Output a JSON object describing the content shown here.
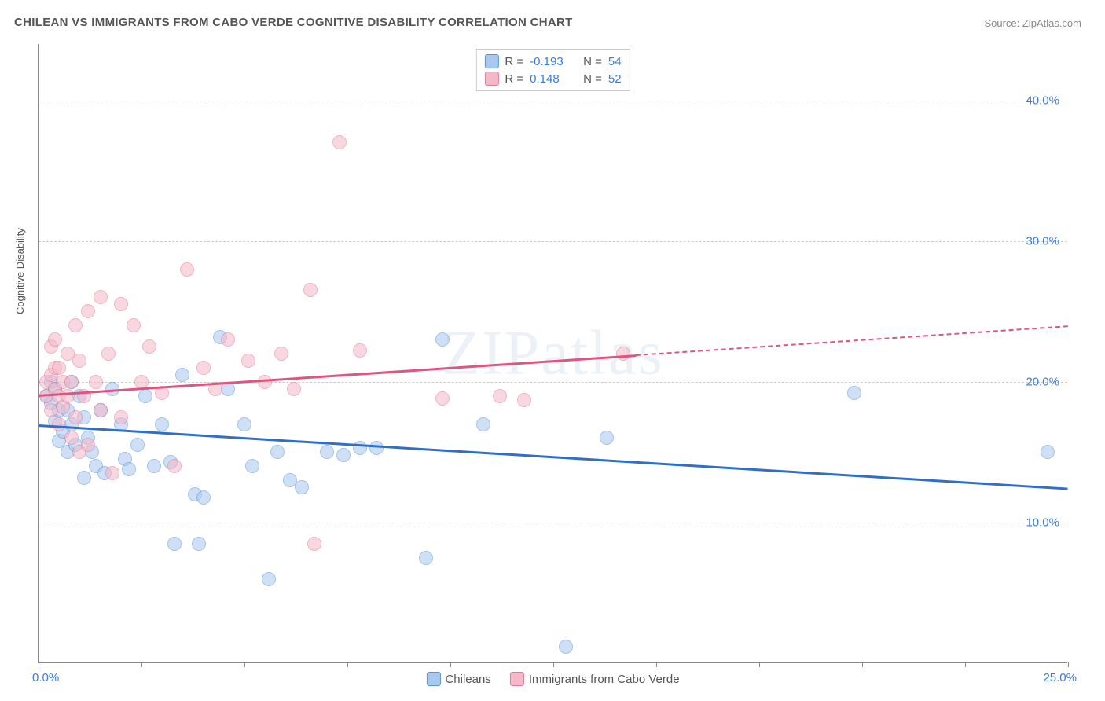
{
  "title": "CHILEAN VS IMMIGRANTS FROM CABO VERDE COGNITIVE DISABILITY CORRELATION CHART",
  "source_prefix": "Source: ",
  "source_name": "ZipAtlas.com",
  "watermark": "ZIPatlas",
  "y_axis_title": "Cognitive Disability",
  "chart": {
    "type": "scatter",
    "xlim": [
      0,
      25
    ],
    "ylim": [
      0,
      44
    ],
    "x_ticks": [
      0,
      2.5,
      5,
      7.5,
      10,
      12.5,
      15,
      17.5,
      20,
      22.5,
      25
    ],
    "x_origin_label": "0.0%",
    "x_max_label": "25.0%",
    "y_gridlines": [
      10,
      20,
      30,
      40
    ],
    "y_tick_labels": [
      "10.0%",
      "20.0%",
      "30.0%",
      "40.0%"
    ],
    "y_tick_color": "#3b7dd8",
    "x_label_color": "#3b7dd8",
    "background": "#ffffff",
    "grid_color": "#cccccc",
    "axis_color": "#888888",
    "marker_radius": 9,
    "marker_opacity": 0.55,
    "marker_border_opacity": 0.9
  },
  "series": [
    {
      "key": "chileans",
      "label": "Chileans",
      "fill": "#a8c8f0",
      "stroke": "#5a93d6",
      "line_color": "#2f6fc9",
      "R": "-0.193",
      "N": "54",
      "trend": {
        "x1": 0,
        "y1": 17.0,
        "x2": 25,
        "y2": 12.5,
        "solid_until_x": 25
      },
      "points": [
        [
          0.2,
          19.0
        ],
        [
          0.3,
          18.5
        ],
        [
          0.3,
          20.0
        ],
        [
          0.4,
          17.2
        ],
        [
          0.4,
          19.5
        ],
        [
          0.5,
          18.0
        ],
        [
          0.5,
          15.8
        ],
        [
          0.6,
          16.5
        ],
        [
          0.7,
          18.0
        ],
        [
          0.7,
          15.0
        ],
        [
          0.8,
          17.0
        ],
        [
          0.8,
          20.0
        ],
        [
          0.9,
          15.5
        ],
        [
          1.0,
          19.0
        ],
        [
          1.1,
          13.2
        ],
        [
          1.1,
          17.5
        ],
        [
          1.2,
          16.0
        ],
        [
          1.3,
          15.0
        ],
        [
          1.4,
          14.0
        ],
        [
          1.5,
          18.0
        ],
        [
          1.6,
          13.5
        ],
        [
          1.8,
          19.5
        ],
        [
          2.0,
          17.0
        ],
        [
          2.1,
          14.5
        ],
        [
          2.2,
          13.8
        ],
        [
          2.4,
          15.5
        ],
        [
          2.6,
          19.0
        ],
        [
          2.8,
          14.0
        ],
        [
          3.0,
          17.0
        ],
        [
          3.2,
          14.3
        ],
        [
          3.3,
          8.5
        ],
        [
          3.5,
          20.5
        ],
        [
          3.8,
          12.0
        ],
        [
          4.0,
          11.8
        ],
        [
          4.4,
          23.2
        ],
        [
          4.6,
          19.5
        ],
        [
          5.0,
          17.0
        ],
        [
          5.2,
          14.0
        ],
        [
          5.6,
          6.0
        ],
        [
          5.8,
          15.0
        ],
        [
          6.1,
          13.0
        ],
        [
          6.4,
          12.5
        ],
        [
          7.0,
          15.0
        ],
        [
          7.4,
          14.8
        ],
        [
          7.8,
          15.3
        ],
        [
          8.2,
          15.3
        ],
        [
          9.4,
          7.5
        ],
        [
          9.8,
          23.0
        ],
        [
          10.8,
          17.0
        ],
        [
          12.8,
          1.2
        ],
        [
          13.8,
          16.0
        ],
        [
          19.8,
          19.2
        ],
        [
          24.5,
          15.0
        ],
        [
          3.9,
          8.5
        ]
      ]
    },
    {
      "key": "cabo_verde",
      "label": "Immigrants from Cabo Verde",
      "fill": "#f5b8c8",
      "stroke": "#e07b9a",
      "line_color": "#e05580",
      "R": "0.148",
      "N": "52",
      "trend": {
        "x1": 0,
        "y1": 19.1,
        "x2": 25,
        "y2": 24.0,
        "solid_until_x": 14.5
      },
      "points": [
        [
          0.2,
          20.0
        ],
        [
          0.2,
          19.0
        ],
        [
          0.3,
          22.5
        ],
        [
          0.3,
          18.0
        ],
        [
          0.3,
          20.5
        ],
        [
          0.4,
          21.0
        ],
        [
          0.4,
          19.5
        ],
        [
          0.4,
          23.0
        ],
        [
          0.5,
          17.0
        ],
        [
          0.5,
          19.0
        ],
        [
          0.5,
          21.0
        ],
        [
          0.6,
          20.0
        ],
        [
          0.6,
          18.2
        ],
        [
          0.7,
          22.0
        ],
        [
          0.7,
          19.0
        ],
        [
          0.8,
          16.0
        ],
        [
          0.8,
          20.0
        ],
        [
          0.9,
          17.5
        ],
        [
          0.9,
          24.0
        ],
        [
          1.0,
          15.0
        ],
        [
          1.0,
          21.5
        ],
        [
          1.1,
          19.0
        ],
        [
          1.2,
          25.0
        ],
        [
          1.2,
          15.5
        ],
        [
          1.4,
          20.0
        ],
        [
          1.5,
          18.0
        ],
        [
          1.5,
          26.0
        ],
        [
          1.7,
          22.0
        ],
        [
          1.8,
          13.5
        ],
        [
          2.0,
          25.5
        ],
        [
          2.0,
          17.5
        ],
        [
          2.3,
          24.0
        ],
        [
          2.5,
          20.0
        ],
        [
          2.7,
          22.5
        ],
        [
          3.0,
          19.2
        ],
        [
          3.3,
          14.0
        ],
        [
          3.6,
          28.0
        ],
        [
          4.0,
          21.0
        ],
        [
          4.3,
          19.5
        ],
        [
          4.6,
          23.0
        ],
        [
          5.1,
          21.5
        ],
        [
          5.5,
          20.0
        ],
        [
          5.9,
          22.0
        ],
        [
          6.2,
          19.5
        ],
        [
          6.6,
          26.5
        ],
        [
          6.7,
          8.5
        ],
        [
          7.3,
          37.0
        ],
        [
          7.8,
          22.2
        ],
        [
          9.8,
          18.8
        ],
        [
          11.2,
          19.0
        ],
        [
          11.8,
          18.7
        ],
        [
          14.2,
          22.0
        ]
      ]
    }
  ],
  "stats_legend": {
    "r_label": "R =",
    "n_label": "N =",
    "value_color": "#3b7dd8",
    "label_color": "#555555"
  },
  "bottom_legend_color": "#555555"
}
